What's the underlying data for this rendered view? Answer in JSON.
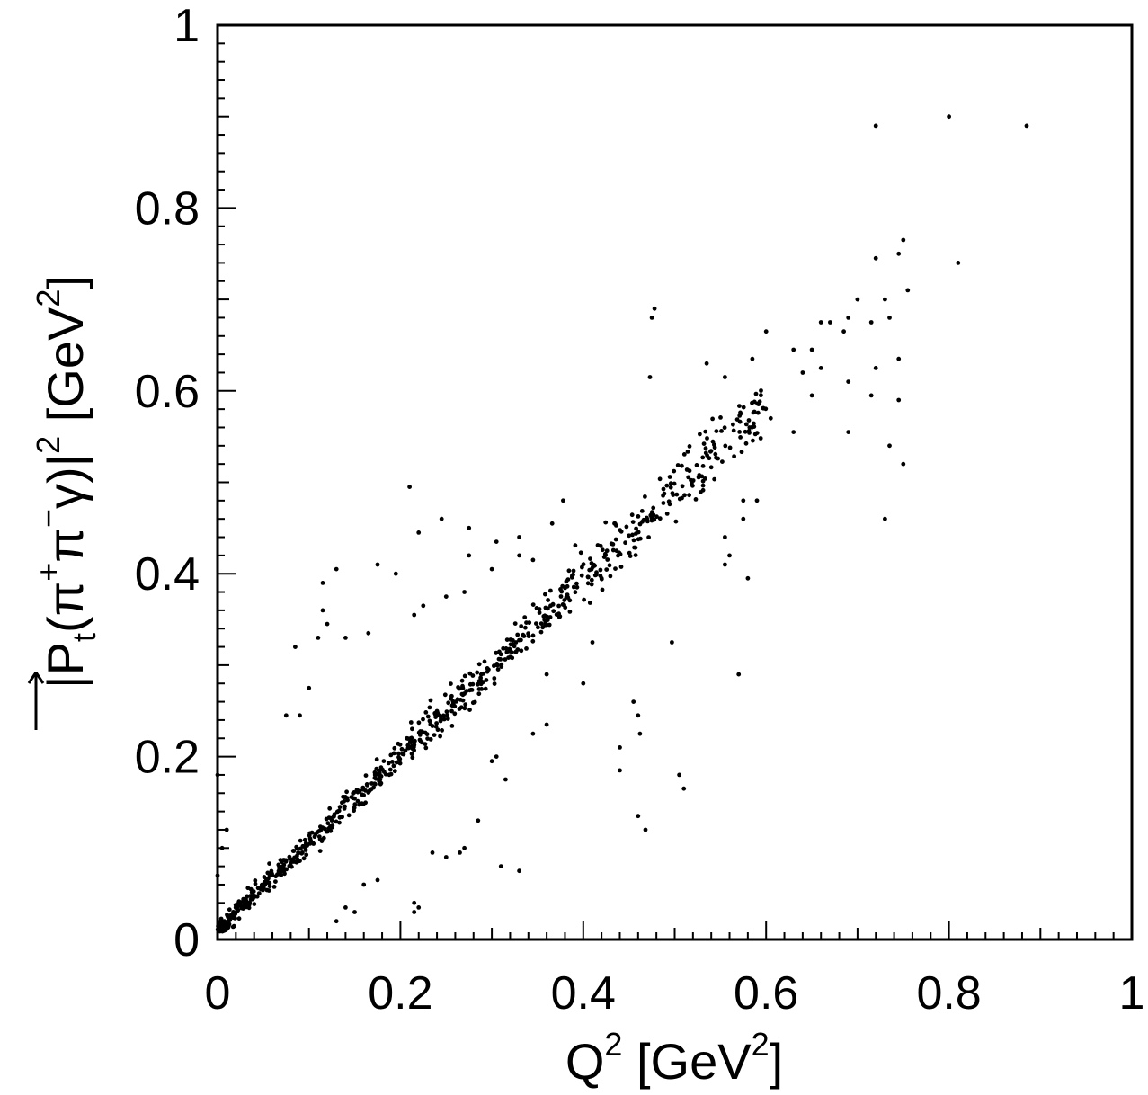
{
  "chart_data": {
    "type": "scatter",
    "title": "",
    "xlabel": {
      "base": "Q",
      "sup": "2",
      "unit_open": " [GeV",
      "unit_sup": "2",
      "unit_close": "]"
    },
    "ylabel": {
      "open": "|",
      "vec": "P",
      "sub": "t",
      "paren_open": "(π",
      "sup1": "+",
      "mid": "π",
      "sup2": "−",
      "gamma": "γ",
      "paren_close": ")|",
      "sup3": "2",
      "unit_open": " [GeV",
      "unit_sup": "2",
      "unit_close": "]"
    },
    "xlim": [
      0,
      1
    ],
    "ylim": [
      0,
      1
    ],
    "xticks": [
      "0",
      "0.2",
      "0.4",
      "0.6",
      "0.8",
      "1"
    ],
    "yticks": [
      "0",
      "0.2",
      "0.4",
      "0.6",
      "0.8",
      "1"
    ],
    "grid": false,
    "marker_color": "#000000",
    "outliers": [
      [
        0.72,
        0.89
      ],
      [
        0.8,
        0.9
      ],
      [
        0.885,
        0.89
      ],
      [
        0.81,
        0.74
      ],
      [
        0.75,
        0.765
      ],
      [
        0.745,
        0.75
      ],
      [
        0.755,
        0.71
      ],
      [
        0.72,
        0.745
      ],
      [
        0.478,
        0.69
      ],
      [
        0.475,
        0.68
      ],
      [
        0.473,
        0.615
      ],
      [
        0.535,
        0.63
      ],
      [
        0.555,
        0.615
      ],
      [
        0.585,
        0.635
      ],
      [
        0.6,
        0.665
      ],
      [
        0.63,
        0.645
      ],
      [
        0.65,
        0.645
      ],
      [
        0.66,
        0.675
      ],
      [
        0.67,
        0.675
      ],
      [
        0.685,
        0.665
      ],
      [
        0.69,
        0.68
      ],
      [
        0.7,
        0.7
      ],
      [
        0.73,
        0.7
      ],
      [
        0.735,
        0.68
      ],
      [
        0.715,
        0.675
      ],
      [
        0.745,
        0.635
      ],
      [
        0.72,
        0.625
      ],
      [
        0.64,
        0.62
      ],
      [
        0.66,
        0.625
      ],
      [
        0.69,
        0.61
      ],
      [
        0.715,
        0.595
      ],
      [
        0.745,
        0.59
      ],
      [
        0.65,
        0.595
      ],
      [
        0.605,
        0.57
      ],
      [
        0.63,
        0.555
      ],
      [
        0.69,
        0.555
      ],
      [
        0.735,
        0.54
      ],
      [
        0.75,
        0.52
      ],
      [
        0.73,
        0.46
      ],
      [
        0.575,
        0.48
      ],
      [
        0.59,
        0.48
      ],
      [
        0.575,
        0.46
      ],
      [
        0.555,
        0.44
      ],
      [
        0.56,
        0.42
      ],
      [
        0.555,
        0.41
      ],
      [
        0.58,
        0.395
      ],
      [
        0.57,
        0.29
      ],
      [
        0.497,
        0.325
      ],
      [
        0.505,
        0.18
      ],
      [
        0.51,
        0.165
      ],
      [
        0.468,
        0.12
      ],
      [
        0.46,
        0.135
      ],
      [
        0.455,
        0.26
      ],
      [
        0.46,
        0.245
      ],
      [
        0.462,
        0.225
      ],
      [
        0.44,
        0.21
      ],
      [
        0.44,
        0.185
      ],
      [
        0.4,
        0.28
      ],
      [
        0.378,
        0.48
      ],
      [
        0.366,
        0.455
      ],
      [
        0.21,
        0.495
      ],
      [
        0.22,
        0.445
      ],
      [
        0.245,
        0.46
      ],
      [
        0.275,
        0.45
      ],
      [
        0.275,
        0.42
      ],
      [
        0.305,
        0.435
      ],
      [
        0.33,
        0.44
      ],
      [
        0.33,
        0.42
      ],
      [
        0.345,
        0.415
      ],
      [
        0.3,
        0.405
      ],
      [
        0.13,
        0.405
      ],
      [
        0.175,
        0.41
      ],
      [
        0.195,
        0.4
      ],
      [
        0.115,
        0.39
      ],
      [
        0.115,
        0.36
      ],
      [
        0.12,
        0.345
      ],
      [
        0.225,
        0.365
      ],
      [
        0.215,
        0.355
      ],
      [
        0.25,
        0.375
      ],
      [
        0.27,
        0.38
      ],
      [
        0.33,
        0.075
      ],
      [
        0.31,
        0.08
      ],
      [
        0.285,
        0.13
      ],
      [
        0.235,
        0.095
      ],
      [
        0.25,
        0.09
      ],
      [
        0.265,
        0.095
      ],
      [
        0.27,
        0.1
      ],
      [
        0.215,
        0.04
      ],
      [
        0.215,
        0.03
      ],
      [
        0.22,
        0.035
      ],
      [
        0.16,
        0.06
      ],
      [
        0.175,
        0.065
      ],
      [
        0.14,
        0.035
      ],
      [
        0.15,
        0.03
      ],
      [
        0.13,
        0.02
      ],
      [
        0.085,
        0.32
      ],
      [
        0.11,
        0.33
      ],
      [
        0.14,
        0.33
      ],
      [
        0.165,
        0.335
      ],
      [
        0.1,
        0.275
      ],
      [
        0.09,
        0.245
      ],
      [
        0.075,
        0.245
      ],
      [
        0.345,
        0.225
      ],
      [
        0.36,
        0.235
      ],
      [
        0.36,
        0.29
      ],
      [
        0.41,
        0.325
      ],
      [
        0.3,
        0.195
      ],
      [
        0.305,
        0.2
      ],
      [
        0.315,
        0.175
      ],
      [
        0.0,
        0.18
      ],
      [
        0.005,
        0.1
      ],
      [
        0.0,
        0.07
      ],
      [
        0.01,
        0.12
      ]
    ],
    "band_seed": 7,
    "band_count": 780,
    "band_slope": 0.96,
    "band_offset": 0.01,
    "band_spread": 0.045
  }
}
